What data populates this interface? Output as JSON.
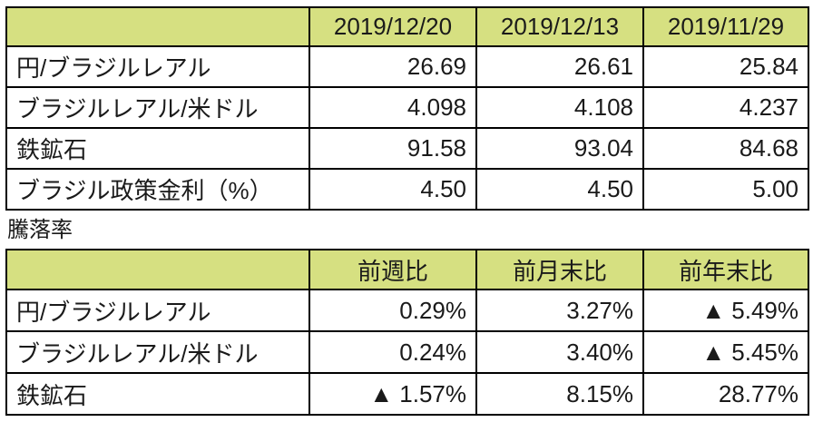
{
  "colors": {
    "header_bg": "#d6e081",
    "border": "#000000",
    "text": "#1a1a1a"
  },
  "levels_table": {
    "columns": [
      "2019/12/20",
      "2019/12/13",
      "2019/11/29"
    ],
    "rows": [
      {
        "label": "円/ブラジルレアル",
        "values": [
          "26.69",
          "26.61",
          "25.84"
        ]
      },
      {
        "label": "ブラジルレアル/米ドル",
        "values": [
          "4.098",
          "4.108",
          "4.237"
        ]
      },
      {
        "label": "鉄鉱石",
        "values": [
          "91.58",
          "93.04",
          "84.68"
        ]
      },
      {
        "label": "ブラジル政策金利（%）",
        "values": [
          "4.50",
          "4.50",
          "5.00"
        ]
      }
    ]
  },
  "section_label": "騰落率",
  "change_table": {
    "columns": [
      "前週比",
      "前月末比",
      "前年末比"
    ],
    "rows": [
      {
        "label": "円/ブラジルレアル",
        "values": [
          "0.29%",
          "3.27%",
          "▲ 5.49%"
        ]
      },
      {
        "label": "ブラジルレアル/米ドル",
        "values": [
          "0.24%",
          "3.40%",
          "▲ 5.45%"
        ]
      },
      {
        "label": "鉄鉱石",
        "values": [
          "▲ 1.57%",
          "8.15%",
          "28.77%"
        ]
      }
    ]
  },
  "chart_data": [
    {
      "type": "table",
      "title": "",
      "columns": [
        "",
        "2019/12/20",
        "2019/12/13",
        "2019/11/29"
      ],
      "rows": [
        [
          "円/ブラジルレアル",
          26.69,
          26.61,
          25.84
        ],
        [
          "ブラジルレアル/米ドル",
          4.098,
          4.108,
          4.237
        ],
        [
          "鉄鉱石",
          91.58,
          93.04,
          84.68
        ],
        [
          "ブラジル政策金利（%）",
          4.5,
          4.5,
          5.0
        ]
      ],
      "layout": {
        "header_fill": "#d6e081",
        "grid": true
      }
    },
    {
      "type": "table",
      "title": "騰落率",
      "columns": [
        "",
        "前週比",
        "前月末比",
        "前年末比"
      ],
      "rows": [
        [
          "円/ブラジルレアル",
          0.29,
          3.27,
          -5.49
        ],
        [
          "ブラジルレアル/米ドル",
          0.24,
          3.4,
          -5.45
        ],
        [
          "鉄鉱石",
          -1.57,
          8.15,
          28.77
        ]
      ],
      "units": "%",
      "negative_marker": "▲",
      "layout": {
        "header_fill": "#d6e081",
        "grid": true
      }
    }
  ]
}
